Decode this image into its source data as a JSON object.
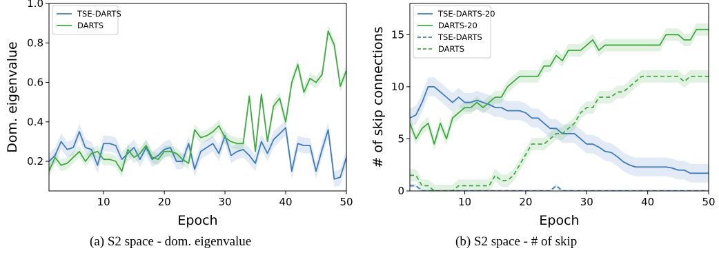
{
  "colors": {
    "tse": "#3b7bbf",
    "darts": "#3daa3d"
  },
  "captions": {
    "a": "(a) S2 space - dom. eigenvalue",
    "b": "(b) S2 space - # of skip"
  },
  "chart_data": [
    {
      "type": "line",
      "xlabel": "Epoch",
      "ylabel": "Dom. eigenvalue",
      "xlim": [
        1,
        50
      ],
      "ylim": [
        0.05,
        1.0
      ],
      "xticks": [
        10,
        20,
        30,
        40,
        50
      ],
      "yticks": [
        0.2,
        0.4,
        0.6,
        0.8,
        1.0
      ],
      "ytick_labels": [
        "0.2",
        "0.4",
        "0.6",
        "0.8",
        "1.0"
      ],
      "legend_loc": "top-left",
      "grid": false,
      "x": [
        1,
        2,
        3,
        4,
        5,
        6,
        7,
        8,
        9,
        10,
        11,
        12,
        13,
        14,
        15,
        16,
        17,
        18,
        19,
        20,
        21,
        22,
        23,
        24,
        25,
        26,
        27,
        28,
        29,
        30,
        31,
        32,
        33,
        34,
        35,
        36,
        37,
        38,
        39,
        40,
        41,
        42,
        43,
        44,
        45,
        46,
        47,
        48,
        49,
        50
      ],
      "series": [
        {
          "name": "TSE-DARTS",
          "color_key": "tse",
          "dash": false,
          "values": [
            0.2,
            0.23,
            0.3,
            0.26,
            0.27,
            0.35,
            0.27,
            0.26,
            0.18,
            0.29,
            0.29,
            0.28,
            0.21,
            0.24,
            0.27,
            0.21,
            0.27,
            0.21,
            0.23,
            0.26,
            0.27,
            0.2,
            0.2,
            0.29,
            0.16,
            0.25,
            0.27,
            0.29,
            0.24,
            0.33,
            0.23,
            0.25,
            0.26,
            0.23,
            0.19,
            0.3,
            0.24,
            0.31,
            0.34,
            0.37,
            0.15,
            0.29,
            0.28,
            0.28,
            0.15,
            0.26,
            0.36,
            0.11,
            0.12,
            0.22
          ],
          "band": 0.04
        },
        {
          "name": "DARTS",
          "color_key": "darts",
          "dash": false,
          "values": [
            0.15,
            0.22,
            0.18,
            0.19,
            0.22,
            0.25,
            0.2,
            0.24,
            0.25,
            0.21,
            0.21,
            0.2,
            0.15,
            0.26,
            0.22,
            0.24,
            0.28,
            0.22,
            0.21,
            0.25,
            0.25,
            0.24,
            0.21,
            0.19,
            0.36,
            0.32,
            0.33,
            0.35,
            0.38,
            0.32,
            0.3,
            0.29,
            0.29,
            0.53,
            0.25,
            0.54,
            0.3,
            0.48,
            0.52,
            0.4,
            0.6,
            0.69,
            0.55,
            0.62,
            0.6,
            0.64,
            0.86,
            0.79,
            0.58,
            0.66
          ],
          "band": 0.03
        }
      ]
    },
    {
      "type": "line",
      "xlabel": "Epoch",
      "ylabel": "# of skip connections",
      "xlim": [
        1,
        50
      ],
      "ylim": [
        0,
        18
      ],
      "xticks": [
        10,
        20,
        30,
        40,
        50
      ],
      "yticks": [
        0,
        5,
        10,
        15
      ],
      "ytick_labels": [
        "0",
        "5",
        "10",
        "15"
      ],
      "legend_loc": "top-left",
      "grid": false,
      "x": [
        1,
        2,
        3,
        4,
        5,
        6,
        7,
        8,
        9,
        10,
        11,
        12,
        13,
        14,
        15,
        16,
        17,
        18,
        19,
        20,
        21,
        22,
        23,
        24,
        25,
        26,
        27,
        28,
        29,
        30,
        31,
        32,
        33,
        34,
        35,
        36,
        37,
        38,
        39,
        40,
        41,
        42,
        43,
        44,
        45,
        46,
        47,
        48,
        49,
        50
      ],
      "series": [
        {
          "name": "TSE-DARTS-20",
          "color_key": "tse",
          "dash": false,
          "values": [
            7.0,
            7.3,
            8.5,
            10.0,
            10.0,
            9.5,
            9.0,
            8.5,
            9.0,
            8.5,
            8.5,
            8.7,
            8.5,
            8.3,
            8.0,
            8.0,
            7.7,
            7.7,
            7.7,
            7.5,
            7.0,
            7.0,
            6.5,
            6.0,
            6.0,
            5.5,
            5.5,
            5.5,
            5.0,
            4.5,
            4.5,
            4.2,
            3.8,
            3.7,
            3.3,
            2.8,
            2.5,
            2.3,
            2.3,
            2.3,
            2.3,
            2.3,
            2.3,
            2.2,
            2.0,
            2.0,
            1.7,
            1.7,
            1.7,
            1.7
          ],
          "band": 0.9
        },
        {
          "name": "DARTS-20",
          "color_key": "darts",
          "dash": false,
          "values": [
            6.5,
            5.0,
            6.0,
            6.5,
            4.5,
            6.5,
            5.0,
            7.0,
            7.5,
            8.0,
            8.0,
            8.5,
            8.0,
            8.5,
            9.0,
            9.0,
            10.0,
            10.5,
            11.0,
            11.0,
            11.0,
            11.0,
            12.0,
            12.0,
            13.0,
            12.5,
            13.5,
            13.5,
            13.5,
            14.0,
            14.5,
            13.5,
            14.0,
            14.0,
            14.0,
            14.0,
            14.0,
            14.0,
            14.0,
            14.0,
            14.0,
            14.0,
            15.0,
            15.0,
            15.0,
            14.5,
            14.5,
            15.5,
            15.5,
            15.5
          ],
          "band": 0.6
        },
        {
          "name": "TSE-DARTS",
          "color_key": "tse",
          "dash": true,
          "values": [
            0.5,
            0.5,
            0,
            0,
            0,
            0,
            0,
            0,
            0,
            0,
            0,
            0,
            0,
            0,
            0,
            0,
            0,
            0,
            0,
            0,
            0,
            0,
            0,
            0,
            0.5,
            0,
            0,
            0,
            0,
            0,
            0,
            0,
            0,
            0,
            0,
            0,
            0,
            0,
            0,
            0,
            0,
            0,
            0,
            0,
            0,
            0,
            0,
            0,
            0,
            0
          ],
          "band": 0.15
        },
        {
          "name": "DARTS",
          "color_key": "darts",
          "dash": true,
          "values": [
            1.5,
            1.5,
            0.5,
            0.5,
            0,
            0,
            0,
            0,
            0.5,
            0.5,
            0.5,
            0.5,
            0.5,
            0.5,
            1.5,
            1.0,
            1.0,
            1.5,
            2.5,
            3.5,
            4.5,
            4.5,
            4.5,
            5.0,
            5.5,
            5.5,
            6.0,
            6.5,
            7.5,
            8.0,
            8.0,
            9.0,
            9.0,
            9.0,
            9.5,
            9.5,
            10.0,
            10.5,
            11.0,
            11.0,
            11.0,
            11.0,
            11.0,
            11.0,
            11.0,
            10.5,
            11.0,
            11.0,
            11.0,
            11.0
          ],
          "band": 0.6
        }
      ]
    }
  ]
}
